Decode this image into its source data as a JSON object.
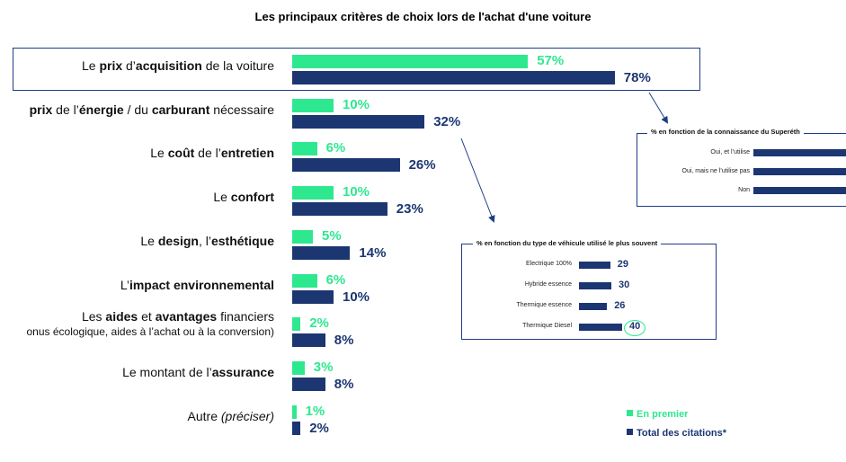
{
  "chart_data": {
    "type": "bar",
    "title": "Les principaux critères de choix lors de l'achat d'une voiture",
    "categories": [
      {
        "label": [
          {
            "t": "Le ",
            "b": false
          },
          {
            "t": "prix",
            "b": true
          },
          {
            "t": " d’",
            "b": false
          },
          {
            "t": "acquisition",
            "b": true
          },
          {
            "t": " de la voiture",
            "b": false
          }
        ]
      },
      {
        "label": [
          {
            "t": "prix",
            "b": true
          },
          {
            "t": " de l’",
            "b": false
          },
          {
            "t": "énergie",
            "b": true
          },
          {
            "t": " / du ",
            "b": false
          },
          {
            "t": "carburant",
            "b": true
          },
          {
            "t": " nécessaire",
            "b": false
          }
        ]
      },
      {
        "label": [
          {
            "t": "Le ",
            "b": false
          },
          {
            "t": "coût",
            "b": true
          },
          {
            "t": " de l’",
            "b": false
          },
          {
            "t": "entretien",
            "b": true
          }
        ]
      },
      {
        "label": [
          {
            "t": "Le ",
            "b": false
          },
          {
            "t": "confort",
            "b": true
          }
        ]
      },
      {
        "label": [
          {
            "t": "Le ",
            "b": false
          },
          {
            "t": "design",
            "b": true
          },
          {
            "t": ", l’",
            "b": false
          },
          {
            "t": "esthétique",
            "b": true
          }
        ]
      },
      {
        "label": [
          {
            "t": "L’",
            "b": false
          },
          {
            "t": "impact environnemental",
            "b": true
          }
        ]
      },
      {
        "label": [
          {
            "t": "Les ",
            "b": false
          },
          {
            "t": "aides",
            "b": true
          },
          {
            "t": " et ",
            "b": false
          },
          {
            "t": "avantages",
            "b": true
          },
          {
            "t": " financiers",
            "b": false
          }
        ],
        "sub": "onus écologique, aides à l’achat ou à la conversion)"
      },
      {
        "label": [
          {
            "t": "Le montant de l’",
            "b": false
          },
          {
            "t": "assurance",
            "b": true
          }
        ]
      },
      {
        "label": [
          {
            "t": "Autre ",
            "b": false
          },
          {
            "t": "(préciser)",
            "b": false,
            "i": true
          }
        ]
      }
    ],
    "series": [
      {
        "name": "En premier",
        "color": "#2ee88f",
        "values": [
          57,
          10,
          6,
          10,
          5,
          6,
          2,
          3,
          1
        ]
      },
      {
        "name": "Total des citations*",
        "color": "#1c3672",
        "values": [
          78,
          32,
          26,
          23,
          14,
          10,
          8,
          8,
          2
        ]
      }
    ],
    "value_suffix": "%",
    "xlim": [
      0,
      100
    ],
    "grid": false,
    "legend": "bottom-right",
    "highlight_category": 0
  },
  "insets": [
    {
      "title": "% en fonction de la connaissance du Superéth",
      "rows": [
        {
          "label": "Oui, et l’utilise",
          "value": null
        },
        {
          "label": "Oui, mais ne l’utilise pas",
          "value": null
        },
        {
          "label": "Non",
          "value": null
        }
      ]
    },
    {
      "title": "% en fonction du type de véhicule utilisé le plus souvent",
      "rows": [
        {
          "label": "Electrique 100%",
          "value": 29
        },
        {
          "label": "Hybride essence",
          "value": 30
        },
        {
          "label": "Thermique essence",
          "value": 26
        },
        {
          "label": "Thermique Diesel",
          "value": 40,
          "circled": true
        }
      ]
    }
  ],
  "legend": [
    {
      "label": "En premier",
      "color": "#2ee88f"
    },
    {
      "label": "Total des citations*",
      "color": "#1c3672"
    }
  ]
}
